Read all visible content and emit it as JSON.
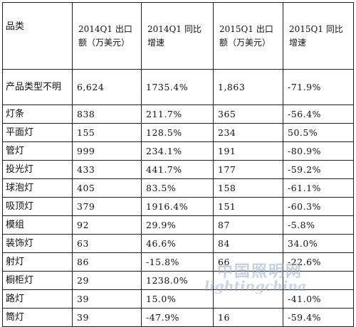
{
  "header": {
    "col1": "品类",
    "col2_line1": "2014Q1 出口",
    "col2_line2": "额（万美元）",
    "col3_line1": "2014Q1 同比",
    "col3_line2": "增速",
    "col4_line1": "2015Q1 出口",
    "col4_line2": "额（万美元）",
    "col5_line1": "2015Q1 同比",
    "col5_line2": "增速"
  },
  "rows": [
    {
      "name": "产品类型不明",
      "v2014": "6,624",
      "g2014": "1735.4%",
      "v2015": "1,863",
      "g2015": "-71.9%"
    },
    {
      "name": "灯条",
      "v2014": "838",
      "g2014": "211.7%",
      "v2015": "365",
      "g2015": "-56.4%"
    },
    {
      "name": "平面灯",
      "v2014": "155",
      "g2014": "128.5%",
      "v2015": "234",
      "g2015": "50.5%"
    },
    {
      "name": "管灯",
      "v2014": "999",
      "g2014": "234.1%",
      "v2015": "191",
      "g2015": "-80.9%"
    },
    {
      "name": "投光灯",
      "v2014": "433",
      "g2014": "441.7%",
      "v2015": "177",
      "g2015": "-59.2%"
    },
    {
      "name": "球泡灯",
      "v2014": "405",
      "g2014": "83.5%",
      "v2015": "158",
      "g2015": "-61.1%"
    },
    {
      "name": "吸顶灯",
      "v2014": "379",
      "g2014": "1916.4%",
      "v2015": "151",
      "g2015": "-60.3%"
    },
    {
      "name": "模组",
      "v2014": "92",
      "g2014": "29.9%",
      "v2015": "87",
      "g2015": "-5.8%"
    },
    {
      "name": "装饰灯",
      "v2014": "63",
      "g2014": "46.6%",
      "v2015": "84",
      "g2015": "34.0%"
    },
    {
      "name": "射灯",
      "v2014": "86",
      "g2014": "-15.8%",
      "v2015": "66",
      "g2015": "-22.6%"
    },
    {
      "name": "橱柜灯",
      "v2014": "29",
      "g2014": "1238.0%",
      "v2015": "",
      "g2015": ""
    },
    {
      "name": "路灯",
      "v2014": "39",
      "g2014": "15.0%",
      "v2015": "",
      "g2015": "-41.0%"
    },
    {
      "name": "筒灯",
      "v2014": "39",
      "g2014": "-47.9%",
      "v2015": "16",
      "g2015": "-59.4%"
    }
  ],
  "watermark": {
    "cn": "中国照明网",
    "en": "lightingchina"
  }
}
